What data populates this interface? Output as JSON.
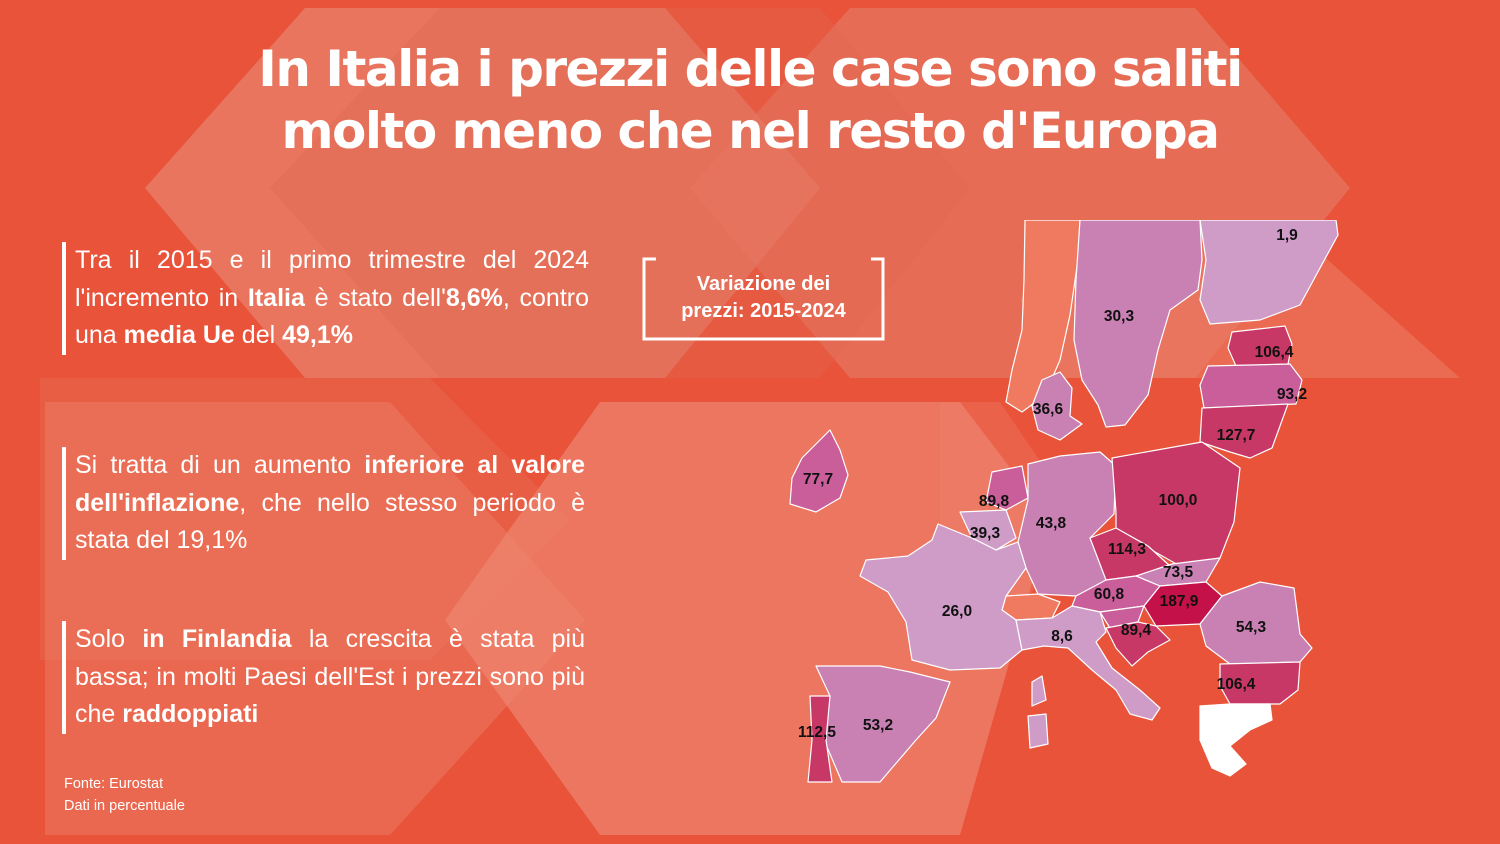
{
  "title": {
    "line1": "In Italia i prezzi delle case sono saliti",
    "line2": "molto meno che nel resto d'Europa"
  },
  "paragraphs": {
    "p1": {
      "t1": "Tra il 2015 e il primo trimestre del 2024 l'incremento in ",
      "b1": "Italia",
      "t2": " è stato dell'",
      "b2": "8,6%",
      "t3": ", contro una ",
      "b3": "media Ue",
      "t4": " del ",
      "b4": "49,1%"
    },
    "p2": {
      "t1": "Si tratta di un aumento ",
      "b1": "inferiore al valore dell'inflazione",
      "t2": ", che nello stesso periodo è stata del 19,1%"
    },
    "p3": {
      "t1": "Solo ",
      "b1": "in Finlandia",
      "t2": " la crescita è stata più bassa; in molti Paesi dell'Est i prezzi sono più che ",
      "b2": "raddoppiati"
    }
  },
  "legend": {
    "line1": "Variazione dei",
    "line2": "prezzi: 2015-2024"
  },
  "source": {
    "line1": "Fonte: Eurostat",
    "line2": "Dati in percentuale"
  },
  "colors": {
    "background": "#e8533a",
    "no_data": "#f07a5f",
    "scale_low": "#cf9bc7",
    "scale_mid": "#c95e9a",
    "scale_high": "#c73867",
    "scale_max": "#c5114a"
  },
  "map_data": {
    "countries": [
      {
        "name": "Finlandia",
        "value": "1,9"
      },
      {
        "name": "Svezia",
        "value": "30,3"
      },
      {
        "name": "Estonia",
        "value": "106,4"
      },
      {
        "name": "Lettonia",
        "value": "93,2"
      },
      {
        "name": "Lituania",
        "value": "127,7"
      },
      {
        "name": "Danimarca",
        "value": "36,6"
      },
      {
        "name": "Irlanda",
        "value": "77,7"
      },
      {
        "name": "Paesi Bassi",
        "value": "89,8"
      },
      {
        "name": "Belgio",
        "value": "39,3"
      },
      {
        "name": "Germania",
        "value": "43,8"
      },
      {
        "name": "Polonia",
        "value": "100,0"
      },
      {
        "name": "Repubblica Ceca",
        "value": "114,3"
      },
      {
        "name": "Slovacchia",
        "value": "73,5"
      },
      {
        "name": "Austria",
        "value": "60,8"
      },
      {
        "name": "Ungheria",
        "value": "187,9"
      },
      {
        "name": "Francia",
        "value": "26,0"
      },
      {
        "name": "Italia",
        "value": "8,6"
      },
      {
        "name": "Croazia",
        "value": "89,4"
      },
      {
        "name": "Romania",
        "value": "54,3"
      },
      {
        "name": "Bulgaria",
        "value": "106,4"
      },
      {
        "name": "Portogallo",
        "value": "112,5"
      },
      {
        "name": "Spagna",
        "value": "53,2"
      }
    ]
  }
}
